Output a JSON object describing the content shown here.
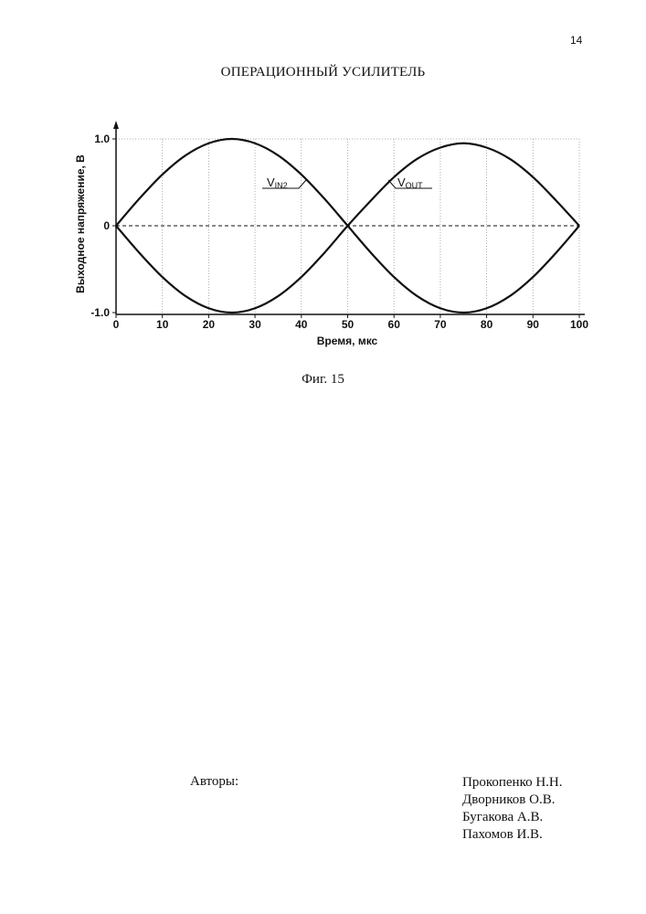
{
  "page_number": "14",
  "document_title": "ОПЕРАЦИОННЫЙ УСИЛИТЕЛЬ",
  "figure_caption": "Фиг. 15",
  "authors_label": "Авторы:",
  "authors": [
    "Прокопенко Н.Н.",
    "Дворников О.В.",
    "Бугакова А.В.",
    "Пахомов И.В."
  ],
  "chart_data": {
    "type": "line",
    "title": "",
    "xlabel": "Время, мкс",
    "ylabel": "Выходное напряжение, В",
    "xlim": [
      0,
      100
    ],
    "ylim": [
      -1.0,
      1.0
    ],
    "x_ticks": [
      "0",
      "10",
      "20",
      "30",
      "40",
      "50",
      "60",
      "70",
      "80",
      "90",
      "100"
    ],
    "y_ticks": [
      "1.0",
      "0",
      "-1.0"
    ],
    "grid": true,
    "x": [
      0,
      5,
      10,
      15,
      20,
      25,
      30,
      35,
      40,
      45,
      50,
      55,
      60,
      65,
      70,
      75,
      80,
      85,
      90,
      95,
      100
    ],
    "series": [
      {
        "name": "VIN2",
        "name_main": "V",
        "name_sub": "IN2",
        "values": [
          0,
          0.31,
          0.59,
          0.81,
          0.95,
          1.0,
          0.95,
          0.81,
          0.59,
          0.31,
          0,
          -0.31,
          -0.59,
          -0.81,
          -0.95,
          -1.0,
          -0.95,
          -0.81,
          -0.59,
          -0.31,
          0
        ]
      },
      {
        "name": "VOUT",
        "name_main": "V",
        "name_sub": "OUT",
        "values": [
          0,
          -0.31,
          -0.59,
          -0.81,
          -0.95,
          -1.0,
          -0.95,
          -0.81,
          -0.59,
          -0.31,
          0,
          0.29,
          0.56,
          0.77,
          0.9,
          0.95,
          0.9,
          0.77,
          0.56,
          0.29,
          0
        ]
      }
    ],
    "reference_line": {
      "y": 0,
      "style": "dashed"
    },
    "colors": {
      "line": "#111111",
      "grid": "#9a9a9a"
    }
  }
}
